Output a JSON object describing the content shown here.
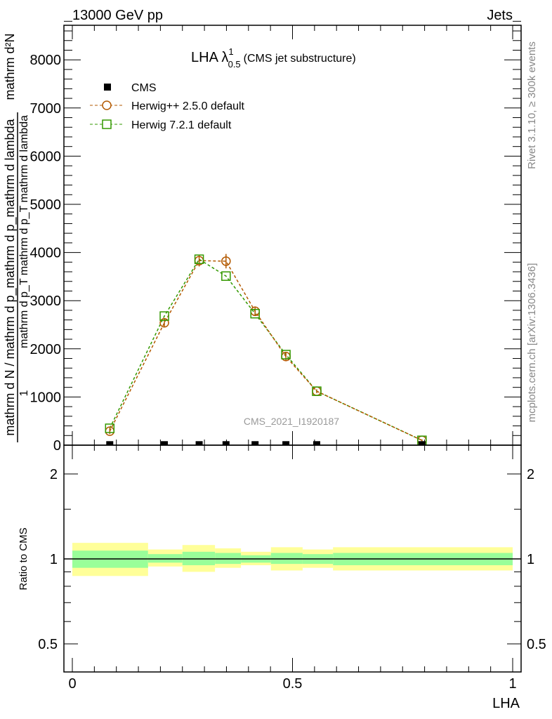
{
  "header": {
    "left": "13000 GeV pp",
    "right": "Jets"
  },
  "side": {
    "rivet": "Rivet 3.1.10, ≥ 300k events",
    "mcplots": "mcplots.cern.ch [arXiv:1306.3436]"
  },
  "watermark": "CMS_2021_I1920187",
  "chart_data": [
    {
      "type": "line",
      "title": "LHA λ",
      "title_sup": "1",
      "title_sub": "0.5",
      "title_suffix": "(CMS jet substructure)",
      "xlabel": "LHA",
      "ylabel_num": "mathrm d²N",
      "ylabel_one": "1",
      "ylabel_den": "mathrm d N / mathrm d p_mathrm d p_mathrm d lambda",
      "ylabel_overlay": "mathrm d p_T mathrm d p_T mathrm d lambda",
      "xlim": [
        -0.02,
        1.02
      ],
      "ylim": [
        0,
        8800
      ],
      "yticks": [
        0,
        1000,
        2000,
        3000,
        4000,
        5000,
        6000,
        7000,
        8000
      ],
      "ytick_labels": [
        "0",
        "1000",
        "2000",
        "3000",
        "4000",
        "5000",
        "6000",
        "7000",
        "8000"
      ],
      "legend_position": "top-left",
      "x": [
        0.085,
        0.209,
        0.288,
        0.349,
        0.415,
        0.485,
        0.555,
        0.794
      ],
      "series": [
        {
          "name": "CMS",
          "color": "#000000",
          "marker": "filled-square",
          "values": [
            10,
            10,
            10,
            10,
            10,
            10,
            10,
            10
          ]
        },
        {
          "name": "Herwig++ 2.5.0 default",
          "color": "#b35900",
          "marker": "open-circle",
          "values": [
            290,
            2540,
            3830,
            3820,
            2780,
            1840,
            1120,
            100
          ],
          "errors": [
            60,
            80,
            120,
            150,
            100,
            80,
            40,
            20
          ]
        },
        {
          "name": "Herwig 7.2.1 default",
          "color": "#339900",
          "marker": "open-square",
          "values": [
            350,
            2680,
            3860,
            3510,
            2730,
            1880,
            1120,
            100
          ]
        }
      ]
    },
    {
      "type": "area",
      "ylabel": "Ratio to CMS",
      "scale": "log",
      "ylim": [
        0.4,
        2.5
      ],
      "yticks": [
        0.5,
        1,
        2
      ],
      "ytick_labels": [
        "0.5",
        "1",
        "2"
      ],
      "xticks": [
        0,
        0.5,
        1
      ],
      "xtick_labels": [
        "0",
        "0.5",
        "1"
      ],
      "bin_edges": [
        0,
        0.172,
        0.25,
        0.324,
        0.383,
        0.451,
        0.523,
        0.592,
        1.0
      ],
      "yellow_band": [
        [
          0.87,
          1.14
        ],
        [
          0.94,
          1.08
        ],
        [
          0.9,
          1.12
        ],
        [
          0.93,
          1.09
        ],
        [
          0.95,
          1.06
        ],
        [
          0.91,
          1.1
        ],
        [
          0.93,
          1.08
        ],
        [
          0.91,
          1.1
        ]
      ],
      "green_band": [
        [
          0.93,
          1.07
        ],
        [
          0.97,
          1.04
        ],
        [
          0.95,
          1.06
        ],
        [
          0.96,
          1.05
        ],
        [
          0.97,
          1.03
        ],
        [
          0.96,
          1.05
        ],
        [
          0.96,
          1.04
        ],
        [
          0.95,
          1.05
        ]
      ],
      "yellow_color": "#ffff99",
      "green_color": "#99ff99"
    }
  ]
}
